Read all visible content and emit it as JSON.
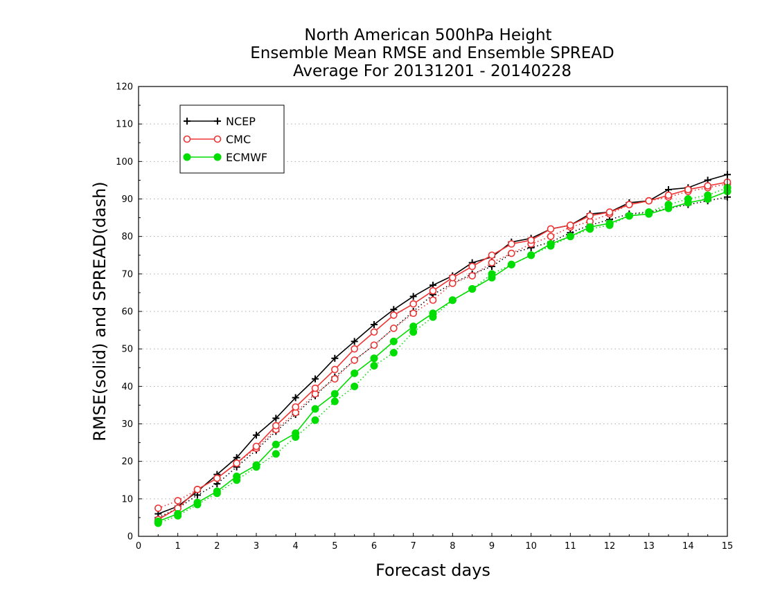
{
  "chart_data": {
    "type": "line",
    "title_lines": [
      "North American 500hPa Height",
      "Ensemble Mean RMSE and Ensemble SPREAD",
      "Average For 20131201 - 20140228"
    ],
    "xlabel": "Forecast days",
    "ylabel": "RMSE(solid) and SPREAD(dash)",
    "xlim": [
      0,
      15
    ],
    "ylim": [
      0,
      120
    ],
    "x_ticks": [
      0,
      1,
      2,
      3,
      4,
      5,
      6,
      7,
      8,
      9,
      10,
      11,
      12,
      13,
      14,
      15
    ],
    "y_ticks": [
      0,
      10,
      20,
      30,
      40,
      50,
      60,
      70,
      80,
      90,
      100,
      110,
      120
    ],
    "grid": "horizontal dotted",
    "legend_position": "top-left",
    "x": [
      0.5,
      1.0,
      1.5,
      2.0,
      2.5,
      3.0,
      3.5,
      4.0,
      4.5,
      5.0,
      5.5,
      6.0,
      6.5,
      7.0,
      7.5,
      8.0,
      8.5,
      9.0,
      9.5,
      10.0,
      10.5,
      11.0,
      11.5,
      12.0,
      12.5,
      13.0,
      13.5,
      14.0,
      14.5,
      15.0
    ],
    "series": [
      {
        "name": "NCEP",
        "color": "#000000",
        "marker": "plus",
        "rmse": [
          6,
          8,
          12,
          16.5,
          21,
          27,
          31.5,
          37,
          42,
          47.5,
          52,
          56.5,
          60.5,
          64,
          67,
          69.5,
          73,
          74.5,
          78.5,
          79.5,
          82,
          83,
          86,
          86.5,
          89,
          89.5,
          92.5,
          93,
          95,
          96.5
        ],
        "spread": [
          5,
          7.5,
          11,
          14,
          18.5,
          23,
          28,
          32.5,
          37.5,
          42.5,
          47,
          51,
          55.5,
          60,
          64.5,
          67.5,
          70,
          72,
          75.5,
          77,
          78.5,
          81,
          83,
          84.5,
          86,
          86.5,
          87.5,
          88.5,
          89.5,
          90.5
        ]
      },
      {
        "name": "CMC",
        "color": "#ee3333",
        "marker": "open-circle",
        "rmse": [
          4.5,
          7.5,
          12.5,
          15.5,
          19.5,
          24,
          29.5,
          34.5,
          39.5,
          44.5,
          50,
          54.5,
          59,
          62,
          65.5,
          69,
          72,
          75,
          78,
          79,
          82,
          83,
          85.5,
          86.5,
          88.5,
          89.5,
          91,
          92.5,
          93.5,
          94.5
        ],
        "spread": [
          7.5,
          9.5,
          12.5,
          15.5,
          19.5,
          23.5,
          28.5,
          33,
          38,
          42,
          47,
          51,
          55.5,
          59.5,
          63,
          67.5,
          69.5,
          73,
          75.5,
          78,
          80,
          82.5,
          84,
          86,
          88.5,
          89.5,
          90.5,
          92,
          93,
          94
        ]
      },
      {
        "name": "ECMWF",
        "color": "#00dd00",
        "marker": "filled-circle",
        "rmse": [
          4,
          6,
          9,
          12,
          16,
          19,
          24.5,
          27.5,
          34,
          38,
          43.5,
          47.5,
          52,
          56,
          59.5,
          63,
          66,
          69,
          72.5,
          75,
          78,
          80,
          82.5,
          83.5,
          85.5,
          86,
          87.5,
          89,
          90,
          92
        ],
        "spread": [
          3.5,
          5.5,
          8.5,
          11.5,
          15,
          18.5,
          22,
          26.5,
          31,
          36,
          40,
          45.5,
          49,
          54.5,
          58.5,
          63,
          66,
          70,
          72.5,
          75,
          77.5,
          80,
          82,
          83,
          85.5,
          86.5,
          88.5,
          90,
          91,
          93
        ]
      }
    ]
  }
}
